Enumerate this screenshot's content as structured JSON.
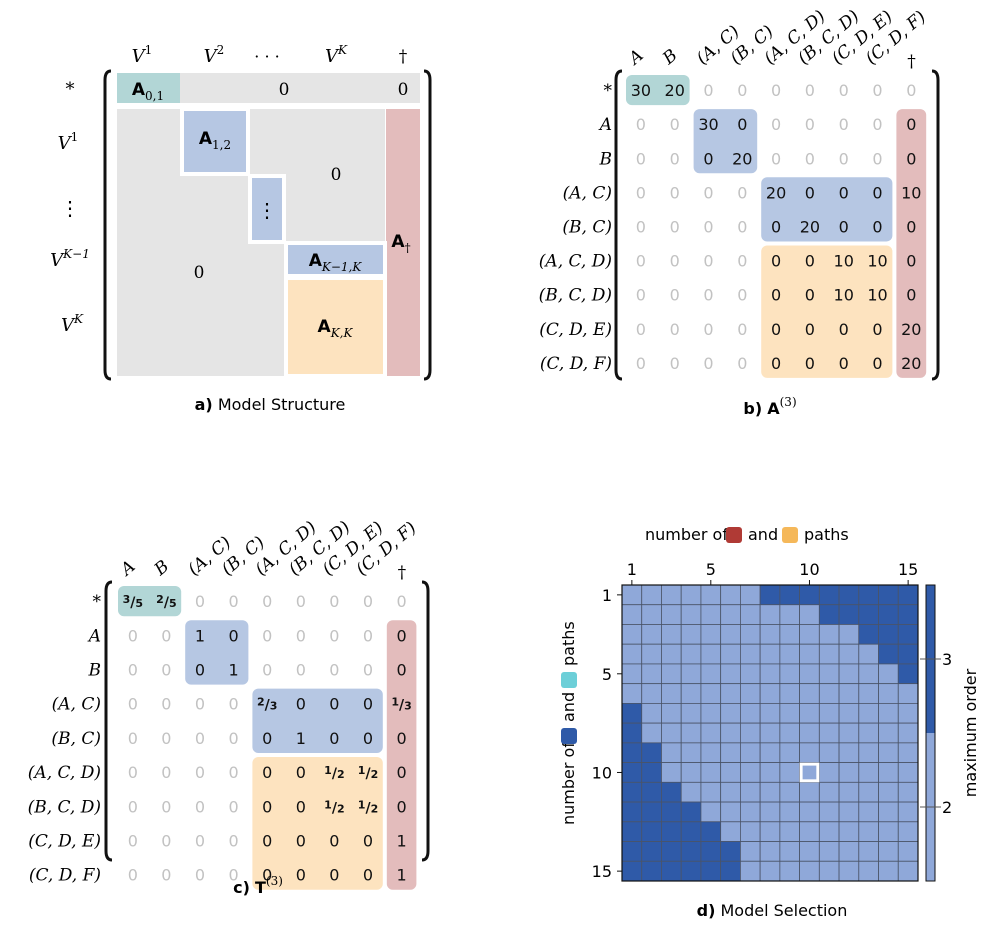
{
  "panel_a": {
    "caption_letter": "a)",
    "caption_text": "Model Structure",
    "col_headers": [
      "V",
      "V",
      "· · ·",
      "V",
      "†"
    ],
    "col_header_sups": [
      "1",
      "2",
      "",
      "K",
      ""
    ],
    "row_labels": [
      "*",
      "V",
      "⋮",
      "V",
      "V"
    ],
    "row_label_sups": [
      "",
      "1",
      "",
      "K−1",
      "K"
    ],
    "block_names": [
      "A",
      "A",
      "A",
      "A",
      "A"
    ],
    "block_subs": [
      "0,1",
      "1,2",
      "K−1,K",
      "K,K",
      "†"
    ],
    "zero_labels": [
      "0",
      "0",
      "0",
      "0"
    ],
    "vdots": "⋮"
  },
  "panel_b": {
    "caption_letter": "b)",
    "caption_matrix": "A",
    "caption_sup": "(3)",
    "col_headers": [
      "A",
      "B",
      "(A, C)",
      "(B, C)",
      "(A, C, D)",
      "(B, C, D)",
      "(C, D, E)",
      "(C, D, F)",
      "†"
    ],
    "row_labels": [
      "*",
      "A",
      "B",
      "(A, C)",
      "(B, C)",
      "(A, C, D)",
      "(B, C, D)",
      "(C, D, E)",
      "(C, D, F)"
    ],
    "rows": [
      [
        "30",
        "20",
        "0",
        "0",
        "0",
        "0",
        "0",
        "0",
        "0"
      ],
      [
        "0",
        "0",
        "30",
        "0",
        "0",
        "0",
        "0",
        "0",
        "0"
      ],
      [
        "0",
        "0",
        "0",
        "20",
        "0",
        "0",
        "0",
        "0",
        "0"
      ],
      [
        "0",
        "0",
        "0",
        "0",
        "20",
        "0",
        "0",
        "0",
        "10"
      ],
      [
        "0",
        "0",
        "0",
        "0",
        "0",
        "20",
        "0",
        "0",
        "0"
      ],
      [
        "0",
        "0",
        "0",
        "0",
        "0",
        "0",
        "10",
        "10",
        "0"
      ],
      [
        "0",
        "0",
        "0",
        "0",
        "0",
        "0",
        "10",
        "10",
        "0"
      ],
      [
        "0",
        "0",
        "0",
        "0",
        "0",
        "0",
        "0",
        "0",
        "20"
      ],
      [
        "0",
        "0",
        "0",
        "0",
        "0",
        "0",
        "0",
        "0",
        "20"
      ]
    ]
  },
  "panel_c": {
    "caption_letter": "c)",
    "caption_matrix": "T",
    "caption_sup": "(3)",
    "col_headers": [
      "A",
      "B",
      "(A, C)",
      "(B, C)",
      "(A, C, D)",
      "(B, C, D)",
      "(C, D, E)",
      "(C, D, F)",
      "†"
    ],
    "row_labels": [
      "*",
      "A",
      "B",
      "(A, C)",
      "(B, C)",
      "(A, C, D)",
      "(B, C, D)",
      "(C, D, E)",
      "(C, D, F)"
    ],
    "rows": [
      [
        "3/5",
        "2/5",
        "0",
        "0",
        "0",
        "0",
        "0",
        "0",
        "0"
      ],
      [
        "0",
        "0",
        "1",
        "0",
        "0",
        "0",
        "0",
        "0",
        "0"
      ],
      [
        "0",
        "0",
        "0",
        "1",
        "0",
        "0",
        "0",
        "0",
        "0"
      ],
      [
        "0",
        "0",
        "0",
        "0",
        "2/3",
        "0",
        "0",
        "0",
        "1/3"
      ],
      [
        "0",
        "0",
        "0",
        "0",
        "0",
        "1",
        "0",
        "0",
        "0"
      ],
      [
        "0",
        "0",
        "0",
        "0",
        "0",
        "0",
        "1/2",
        "1/2",
        "0"
      ],
      [
        "0",
        "0",
        "0",
        "0",
        "0",
        "0",
        "1/2",
        "1/2",
        "0"
      ],
      [
        "0",
        "0",
        "0",
        "0",
        "0",
        "0",
        "0",
        "0",
        "1"
      ],
      [
        "0",
        "0",
        "0",
        "0",
        "0",
        "0",
        "0",
        "0",
        "1"
      ]
    ]
  },
  "panel_d": {
    "caption_letter": "d)",
    "caption_text": "Model Selection",
    "top_label_pre": "number of",
    "top_label_mid": "and",
    "top_label_post": "paths",
    "left_label_pre": "number of",
    "left_label_mid": "and",
    "left_label_post": "paths",
    "colorbar_label": "maximum order",
    "x_ticks": [
      "1",
      "5",
      "10",
      "15"
    ],
    "y_ticks": [
      "1",
      "5",
      "10",
      "15"
    ],
    "colorbar_ticks": [
      "3",
      "2"
    ],
    "colors": {
      "order2": "#8fa8d9",
      "order3": "#2f5aa8",
      "red_swatch": "#b03a35",
      "orange_swatch": "#f5b85a",
      "cyan_swatch": "#6ccfd8",
      "blue_swatch": "#2f5aa8",
      "selected": "#ffffff"
    },
    "selected": [
      10,
      10
    ],
    "chart_data": {
      "type": "heatmap",
      "xlabel": "number of and paths",
      "ylabel": "number of and paths",
      "colorbar": "maximum order",
      "x": [
        1,
        2,
        3,
        4,
        5,
        6,
        7,
        8,
        9,
        10,
        11,
        12,
        13,
        14,
        15
      ],
      "y": [
        1,
        2,
        3,
        4,
        5,
        6,
        7,
        8,
        9,
        10,
        11,
        12,
        13,
        14,
        15
      ],
      "values": [
        [
          2,
          2,
          2,
          2,
          2,
          2,
          2,
          3,
          3,
          3,
          3,
          3,
          3,
          3,
          3
        ],
        [
          2,
          2,
          2,
          2,
          2,
          2,
          2,
          2,
          2,
          2,
          3,
          3,
          3,
          3,
          3
        ],
        [
          2,
          2,
          2,
          2,
          2,
          2,
          2,
          2,
          2,
          2,
          2,
          2,
          3,
          3,
          3
        ],
        [
          2,
          2,
          2,
          2,
          2,
          2,
          2,
          2,
          2,
          2,
          2,
          2,
          2,
          3,
          3
        ],
        [
          2,
          2,
          2,
          2,
          2,
          2,
          2,
          2,
          2,
          2,
          2,
          2,
          2,
          2,
          3
        ],
        [
          2,
          2,
          2,
          2,
          2,
          2,
          2,
          2,
          2,
          2,
          2,
          2,
          2,
          2,
          2
        ],
        [
          3,
          2,
          2,
          2,
          2,
          2,
          2,
          2,
          2,
          2,
          2,
          2,
          2,
          2,
          2
        ],
        [
          3,
          2,
          2,
          2,
          2,
          2,
          2,
          2,
          2,
          2,
          2,
          2,
          2,
          2,
          2
        ],
        [
          3,
          3,
          2,
          2,
          2,
          2,
          2,
          2,
          2,
          2,
          2,
          2,
          2,
          2,
          2
        ],
        [
          3,
          3,
          2,
          2,
          2,
          2,
          2,
          2,
          2,
          2,
          2,
          2,
          2,
          2,
          2
        ],
        [
          3,
          3,
          3,
          2,
          2,
          2,
          2,
          2,
          2,
          2,
          2,
          2,
          2,
          2,
          2
        ],
        [
          3,
          3,
          3,
          3,
          2,
          2,
          2,
          2,
          2,
          2,
          2,
          2,
          2,
          2,
          2
        ],
        [
          3,
          3,
          3,
          3,
          3,
          2,
          2,
          2,
          2,
          2,
          2,
          2,
          2,
          2,
          2
        ],
        [
          3,
          3,
          3,
          3,
          3,
          3,
          2,
          2,
          2,
          2,
          2,
          2,
          2,
          2,
          2
        ],
        [
          3,
          3,
          3,
          3,
          3,
          3,
          2,
          2,
          2,
          2,
          2,
          2,
          2,
          2,
          2
        ]
      ]
    }
  }
}
